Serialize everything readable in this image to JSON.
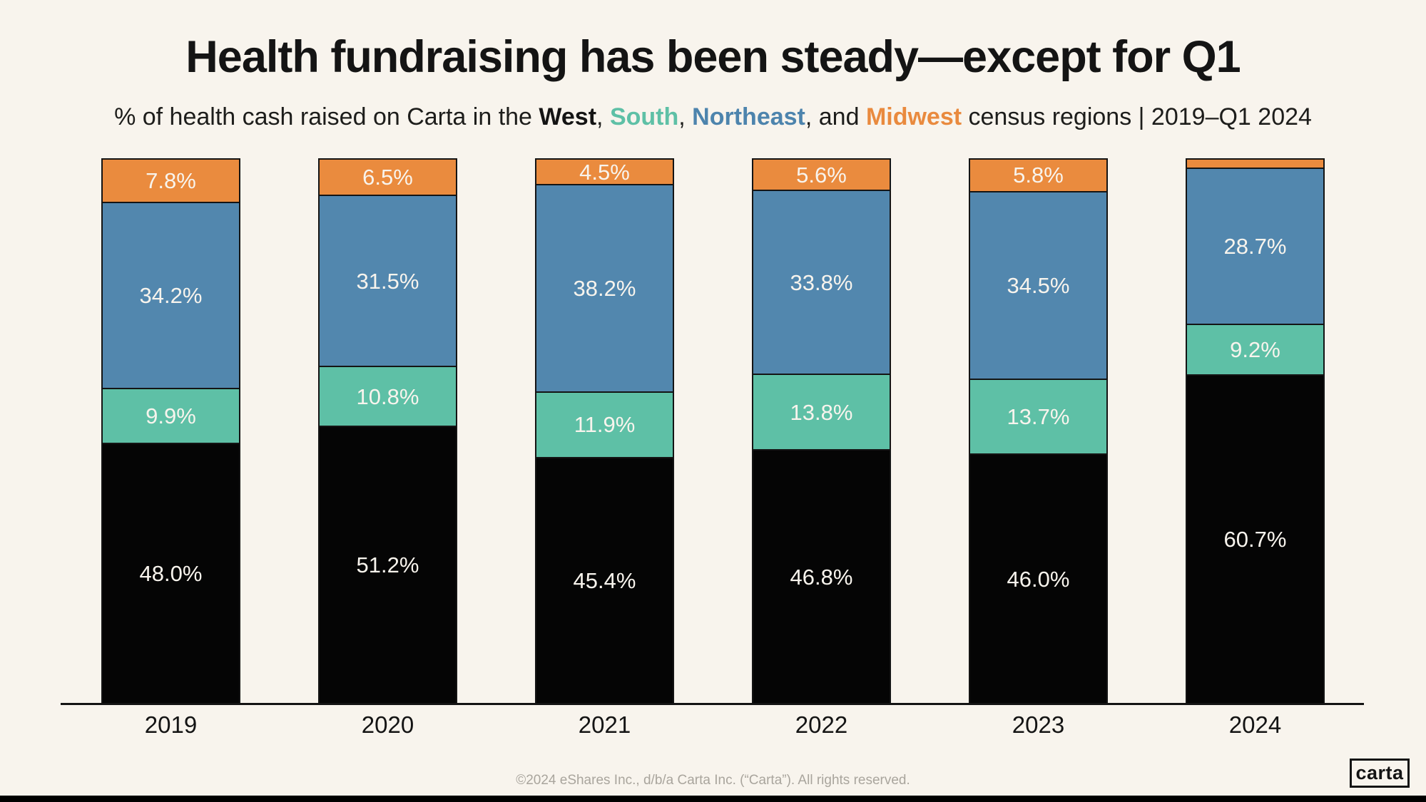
{
  "page": {
    "title": "Health fundraising has been steady—except for Q1",
    "subtitle": {
      "prefix": "% of health cash raised on Carta in the ",
      "west": "West",
      "sep1": ", ",
      "south": "South",
      "sep2": ", ",
      "northeast": "Northeast",
      "sep3": ", and ",
      "midwest": "Midwest",
      "suffix": " census regions | 2019–Q1 2024"
    },
    "footer": "©2024 eShares Inc., d/b/a Carta Inc. (“Carta”). All rights reserved.",
    "logo": "carta"
  },
  "colors": {
    "background": "#f8f4ed",
    "west": "#050505",
    "south": "#5ec0a6",
    "northeast": "#5287ae",
    "midwest": "#ea8b3e",
    "label_text": "#f8f4ed",
    "axis": "#141414",
    "footer_text": "#a9a59d"
  },
  "chart_data": {
    "type": "bar",
    "stacked": true,
    "percent_of_total": true,
    "title": "Health fundraising has been steady—except for Q1",
    "subtitle": "% of health cash raised on Carta in the West, South, Northeast, and Midwest census regions | 2019–Q1 2024",
    "xlabel": "",
    "ylabel": "",
    "ylim": [
      0,
      100
    ],
    "grid": false,
    "legend_position": "inline-in-subtitle",
    "categories": [
      "2019",
      "2020",
      "2021",
      "2022",
      "2023",
      "2024"
    ],
    "series": [
      {
        "name": "West",
        "color_key": "west",
        "values": [
          48.0,
          51.2,
          45.4,
          46.8,
          46.0,
          60.7
        ],
        "labels": [
          "48.0%",
          "51.2%",
          "45.4%",
          "46.8%",
          "46.0%",
          "60.7%"
        ]
      },
      {
        "name": "South",
        "color_key": "south",
        "values": [
          9.9,
          10.8,
          11.9,
          13.8,
          13.7,
          9.2
        ],
        "labels": [
          "9.9%",
          "10.8%",
          "11.9%",
          "13.8%",
          "13.7%",
          "9.2%"
        ]
      },
      {
        "name": "Northeast",
        "color_key": "northeast",
        "values": [
          34.2,
          31.5,
          38.2,
          33.8,
          34.5,
          28.7
        ],
        "labels": [
          "34.2%",
          "31.5%",
          "38.2%",
          "33.8%",
          "34.5%",
          "28.7%"
        ]
      },
      {
        "name": "Midwest",
        "color_key": "midwest",
        "values": [
          7.8,
          6.5,
          4.5,
          5.6,
          5.8,
          1.4
        ],
        "labels": [
          "7.8%",
          "6.5%",
          "4.5%",
          "5.6%",
          "5.8%",
          ""
        ]
      }
    ]
  }
}
